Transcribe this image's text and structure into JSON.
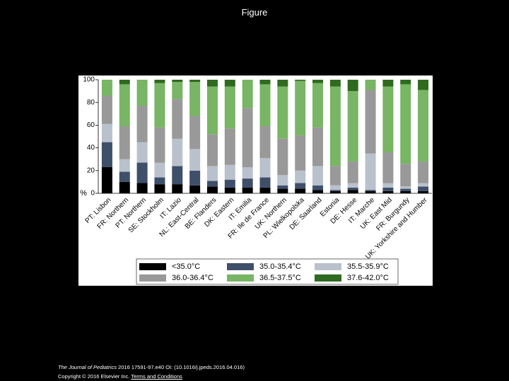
{
  "heading": "Figure",
  "footer": {
    "journal": "The Journal of Pediatrics",
    "citation": " 2016 17591-97.e40 OI: (10.1016/j.jpeds.2016.04.016)",
    "copyright": "Copyright © 2016 Elsevier Inc. ",
    "link": "Terms and Conditions"
  },
  "chart_data": {
    "type": "stacked_bar",
    "ylabel": "%",
    "categories": [
      "PT: Lisbon",
      "FR: Northern",
      "PT: Northern",
      "SE: Stockholm",
      "IT: Lazio",
      "NL: East-Central",
      "BE: Flanders",
      "DK: Eastern",
      "IT: Emilia",
      "FR: Ile de France",
      "UK: Northern",
      "PL: Wielkopolska",
      "DE: Saarland",
      "Estonia",
      "DE: Hesse",
      "IT: Marche",
      "UK: East Mid",
      "FR: Burgundy",
      "UK: Yorkshire and Humber"
    ],
    "ylim": [
      0,
      100
    ],
    "yticks": [
      0,
      20,
      40,
      60,
      80,
      100
    ],
    "series": [
      {
        "name": "<35.0°C",
        "color": "#000000",
        "values": [
          23,
          10,
          9,
          8,
          8,
          7,
          6,
          5,
          5,
          5,
          4,
          4,
          3,
          2,
          3,
          2,
          2,
          2,
          2
        ]
      },
      {
        "name": "35.0-35.4°C",
        "color": "#3e4f6a",
        "values": [
          22,
          9,
          18,
          6,
          16,
          13,
          5,
          7,
          8,
          9,
          3,
          5,
          4,
          1,
          2,
          1,
          3,
          2,
          4
        ]
      },
      {
        "name": "35.5-35.9°C",
        "color": "#b9c1cd",
        "values": [
          16,
          11,
          18,
          13,
          24,
          19,
          13,
          13,
          10,
          17,
          9,
          11,
          17,
          4,
          4,
          32,
          4,
          2,
          3
        ]
      },
      {
        "name": "36.0-36.4°C",
        "color": "#999999",
        "values": [
          25,
          29,
          32,
          31,
          35,
          29,
          28,
          32,
          52,
          28,
          32,
          31,
          34,
          17,
          19,
          56,
          27,
          20,
          19
        ]
      },
      {
        "name": "36.5-37.5°C",
        "color": "#78b564",
        "values": [
          14,
          37,
          23,
          39,
          15,
          30,
          42,
          37,
          25,
          37,
          46,
          48,
          39,
          70,
          62,
          9,
          58,
          70,
          63
        ]
      },
      {
        "name": "37.6-42.0°C",
        "color": "#2f6a1f",
        "values": [
          0,
          4,
          0,
          3,
          2,
          2,
          6,
          6,
          0,
          4,
          6,
          1,
          3,
          6,
          10,
          0,
          6,
          4,
          9
        ]
      }
    ]
  }
}
